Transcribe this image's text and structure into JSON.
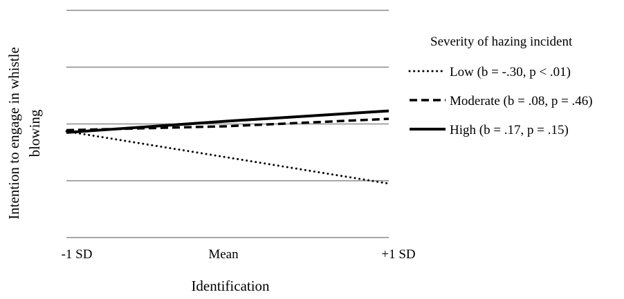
{
  "chart_data": {
    "type": "line",
    "title": "",
    "xlabel": "Identification",
    "ylabel_lines": [
      "Intention to engage in whistle",
      "blowing"
    ],
    "categories": [
      "-1 SD",
      "Mean",
      "+1 SD"
    ],
    "ylim": [
      0,
      4
    ],
    "gridlines": [
      0,
      1,
      2,
      3,
      4
    ],
    "grid": true,
    "legend": {
      "title": "Severity of hazing incident",
      "placement": "right"
    },
    "series": [
      {
        "name": "Low (b = -.30, p < .01)",
        "values": [
          1.87,
          1.41,
          0.95
        ],
        "dash": "dotted",
        "color": "#000000"
      },
      {
        "name": "Moderate (b = .08, p = .46)",
        "values": [
          1.89,
          1.96,
          2.09
        ],
        "dash": "dashed",
        "color": "#000000"
      },
      {
        "name": "High (b = .17, p = .15)",
        "values": [
          1.85,
          2.05,
          2.23
        ],
        "dash": "solid",
        "color": "#000000"
      }
    ]
  }
}
